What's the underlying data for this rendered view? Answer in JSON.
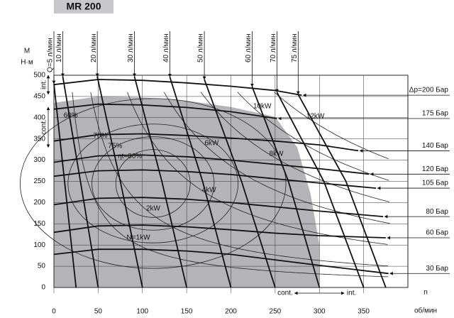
{
  "chart_data": {
    "type": "performance",
    "title": "MR 200",
    "y_label_top": "M",
    "y_label_unit": "Н·м",
    "x_label_top": "n",
    "x_label_unit": "об/мин",
    "left_int": "int.",
    "left_cont": "cont.",
    "bottom_cont": "cont.",
    "bottom_int": "int.",
    "xlim": [
      0,
      400
    ],
    "ylim": [
      0,
      500
    ],
    "xticks": [
      0,
      50,
      100,
      150,
      200,
      250,
      300,
      350
    ],
    "yticks": [
      0,
      50,
      100,
      150,
      200,
      250,
      300,
      350,
      400,
      450,
      500
    ],
    "grid": true,
    "cont_region": {
      "color": "#b4b4b8",
      "x": [
        0,
        0,
        50,
        100,
        150,
        200,
        250,
        275,
        290,
        300,
        300
      ],
      "y": [
        0,
        435,
        450,
        448,
        440,
        425,
        402,
        330,
        220,
        100,
        0
      ]
    },
    "pressure": [
      {
        "name": "Δp=200 Бар",
        "x": [
          0,
          50,
          100,
          150,
          200,
          250,
          280
        ],
        "y": [
          478,
          490,
          488,
          482,
          474,
          464,
          453
        ]
      },
      {
        "name": "175 Бар",
        "x": [
          0,
          50,
          100,
          150,
          200,
          252
        ],
        "y": [
          420,
          432,
          430,
          424,
          414,
          398
        ]
      },
      {
        "name": "140 Бар",
        "x": [
          0,
          50,
          100,
          150,
          200,
          250,
          300,
          344
        ],
        "y": [
          345,
          360,
          362,
          358,
          352,
          345,
          336,
          322
        ]
      },
      {
        "name": "120 Бар",
        "x": [
          0,
          50,
          100,
          150,
          200,
          250,
          300,
          356
        ],
        "y": [
          295,
          310,
          312,
          308,
          300,
          290,
          280,
          267
        ]
      },
      {
        "name": "105 Бар",
        "x": [
          0,
          50,
          100,
          150,
          200,
          250,
          300,
          364
        ],
        "y": [
          262,
          275,
          277,
          273,
          266,
          256,
          246,
          234
        ]
      },
      {
        "name": "80 Бар",
        "x": [
          0,
          50,
          100,
          150,
          200,
          250,
          300,
          372
        ],
        "y": [
          195,
          210,
          212,
          208,
          200,
          190,
          180,
          167
        ]
      },
      {
        "name": "60 Бар",
        "x": [
          0,
          50,
          100,
          150,
          200,
          250,
          300,
          375
        ],
        "y": [
          130,
          145,
          147,
          143,
          136,
          128,
          122,
          117
        ]
      },
      {
        "name": "30 Бар",
        "x": [
          0,
          50,
          100,
          150,
          200,
          250,
          300,
          378
        ],
        "y": [
          78,
          90,
          90,
          86,
          78,
          65,
          52,
          33
        ]
      }
    ],
    "flow": [
      {
        "name": "Q=5 л/мин",
        "x": [
          25,
          12,
          0
        ],
        "y": [
          0,
          250,
          480
        ]
      },
      {
        "name": "10 л/мин",
        "x": [
          50,
          30,
          10
        ],
        "y": [
          0,
          250,
          497
        ]
      },
      {
        "name": "20 л/мин",
        "x": [
          100,
          75,
          49
        ],
        "y": [
          0,
          250,
          497
        ]
      },
      {
        "name": "30 л/мин",
        "x": [
          150,
          122,
          91
        ],
        "y": [
          0,
          250,
          497
        ]
      },
      {
        "name": "40 л/мин",
        "x": [
          200,
          168,
          131
        ],
        "y": [
          0,
          250,
          496
        ]
      },
      {
        "name": "50 л/мин",
        "x": [
          250,
          212,
          170
        ],
        "y": [
          0,
          250,
          490
        ]
      },
      {
        "name": "60 л/мин",
        "x": [
          300,
          265,
          224
        ],
        "y": [
          0,
          250,
          473
        ]
      },
      {
        "name": "70 л/мин",
        "x": [
          350,
          305,
          252
        ],
        "y": [
          0,
          250,
          460
        ]
      },
      {
        "name": "75 л/мин",
        "x": [
          375,
          330,
          276
        ],
        "y": [
          0,
          250,
          455
        ]
      }
    ],
    "power": [
      {
        "name": "N=1kW",
        "kw": 1
      },
      {
        "name": "2kW",
        "kw": 2
      },
      {
        "name": "4kW",
        "kw": 4
      },
      {
        "name": "6kW",
        "kw": 6
      },
      {
        "name": "8kW",
        "kw": 8
      },
      {
        "name": "10kW",
        "kw": 10
      },
      {
        "name": "12kW",
        "kw": 12
      }
    ],
    "efficiency": [
      {
        "name": "60%",
        "value": 60
      },
      {
        "name": "70%",
        "value": 70
      },
      {
        "name": "75%",
        "value": 75
      },
      {
        "name": "ηt=80%",
        "value": 80
      }
    ]
  }
}
